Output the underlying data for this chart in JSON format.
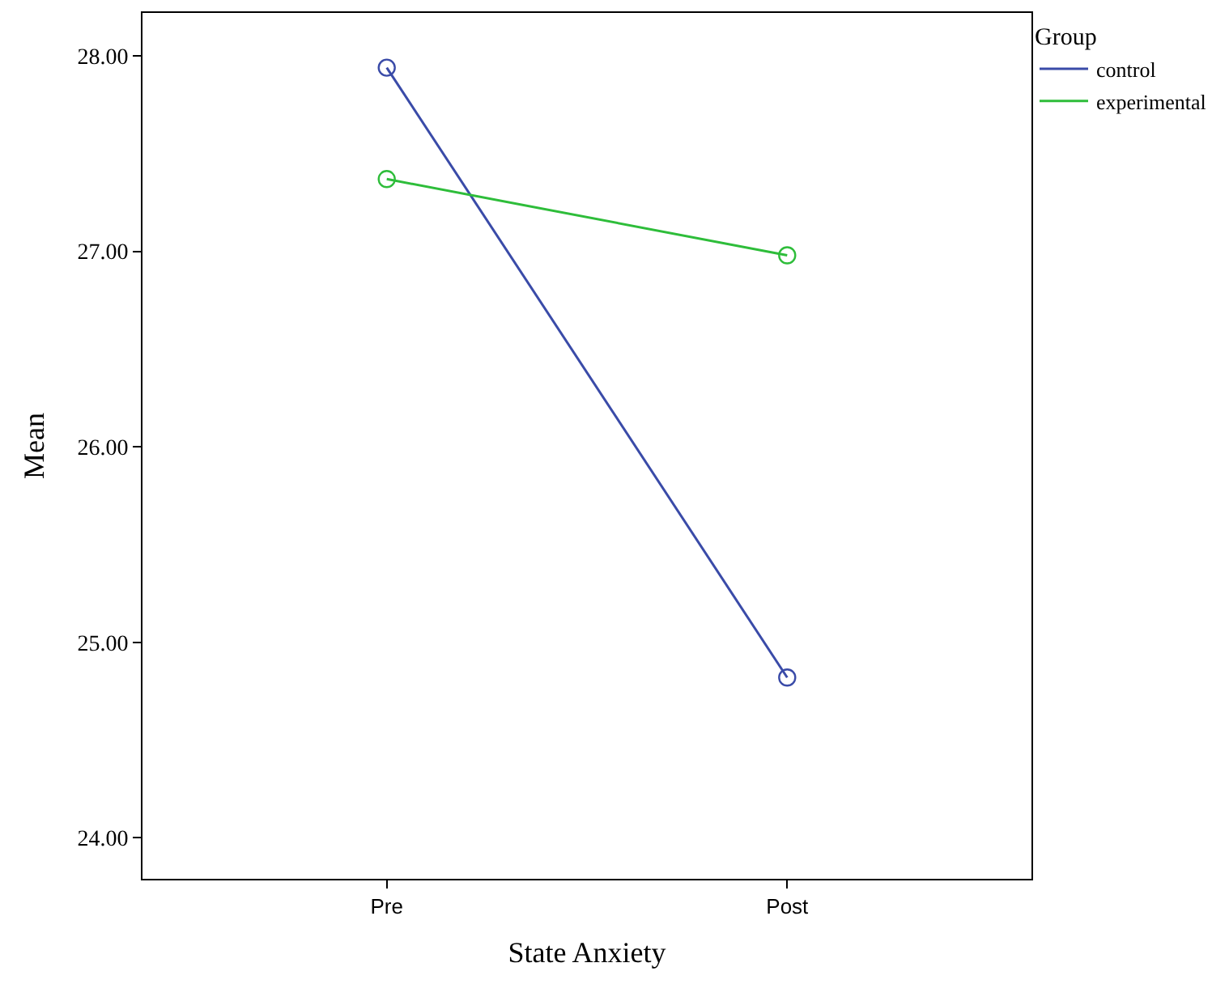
{
  "chart_data": {
    "type": "line",
    "xlabel": "State Anxiety",
    "ylabel": "Mean",
    "legend_title": "Group",
    "categories": [
      "Pre",
      "Post"
    ],
    "series": [
      {
        "name": "control",
        "color": "#3a4ba8",
        "values": [
          27.94,
          24.82
        ]
      },
      {
        "name": "experimental",
        "color": "#2ebd3a",
        "values": [
          27.37,
          26.98
        ]
      }
    ],
    "ylim": [
      23.79,
      28.22
    ],
    "yticks": [
      {
        "value": 24,
        "label": "24.00"
      },
      {
        "value": 25,
        "label": "25.00"
      },
      {
        "value": 26,
        "label": "26.00"
      },
      {
        "value": 27,
        "label": "27.00"
      },
      {
        "value": 28,
        "label": "28.00"
      }
    ],
    "marker": "circle",
    "line_style": "solid",
    "legend": "top right"
  }
}
